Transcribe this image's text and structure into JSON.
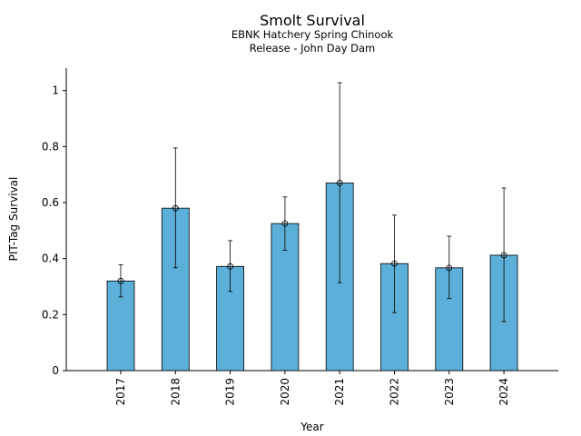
{
  "chart_data": {
    "type": "bar",
    "title": "Smolt Survival",
    "subtitle": [
      "EBNK Hatchery Spring Chinook",
      "Release - John Day Dam"
    ],
    "xlabel": "Year",
    "ylabel": "PIT-Tag Survival",
    "categories": [
      "2017",
      "2018",
      "2019",
      "2020",
      "2021",
      "2022",
      "2023",
      "2024"
    ],
    "values": [
      0.32,
      0.58,
      0.372,
      0.525,
      0.67,
      0.382,
      0.367,
      0.412
    ],
    "error_lower": [
      0.263,
      0.367,
      0.283,
      0.43,
      0.314,
      0.207,
      0.257,
      0.175
    ],
    "error_upper": [
      0.378,
      0.795,
      0.464,
      0.62,
      1.028,
      0.555,
      0.48,
      0.652
    ],
    "ylim": [
      0,
      1.08
    ],
    "yticks": [
      0,
      0.2,
      0.4,
      0.6,
      0.8,
      1
    ],
    "ytick_labels": [
      "0",
      "0.2",
      "0.4",
      "0.6",
      "0.8",
      "1"
    ],
    "grid": false,
    "bar_color": "#5bafd8"
  }
}
